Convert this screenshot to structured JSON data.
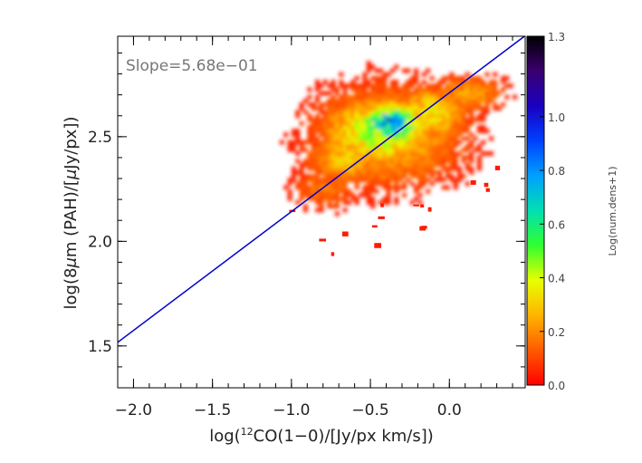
{
  "chart_data": {
    "type": "heatmap",
    "xlabel_pre": "log(",
    "xlabel_sup": "12",
    "xlabel_post": "CO(1−0)/[Jy/px km/s])",
    "ylabel_pre": "log(8",
    "ylabel_mu": "μ",
    "ylabel_mid": "m (PAH)/[",
    "ylabel_mu2": "μ",
    "ylabel_post": "Jy/px])",
    "xlim": [
      -2.1,
      0.48
    ],
    "ylim": [
      1.3,
      2.98
    ],
    "x_ticks": [
      -2.0,
      -1.5,
      -1.0,
      -0.5,
      0.0
    ],
    "x_tick_labels": [
      "−2.0",
      "−1.5",
      "−1.0",
      "−0.5",
      "0.0"
    ],
    "y_ticks": [
      1.5,
      2.0,
      2.5
    ],
    "y_tick_labels": [
      "1.5",
      "2.0",
      "2.5"
    ],
    "annotation": "Slope=5.68e−01",
    "fit_line": {
      "slope": 0.568,
      "intercept": 2.71,
      "color": "#0000cc"
    },
    "colorbar": {
      "label": "Log(num.dens+1)",
      "range": [
        0.0,
        1.3
      ],
      "ticks": [
        0.0,
        0.2,
        0.4,
        0.6,
        0.8,
        1.0,
        1.3
      ],
      "tick_labels": [
        "0.0",
        "0.2",
        "0.4",
        "0.6",
        "0.8",
        "1.0",
        "1.3"
      ],
      "colors": [
        "#ff0000",
        "#ff5a00",
        "#ffb400",
        "#e8ff00",
        "#30ff30",
        "#00e0b0",
        "#00a0ff",
        "#0040ff",
        "#1a00c0",
        "#3a0070",
        "#000000"
      ]
    },
    "density_blobs": [
      {
        "x": -0.4,
        "y": 2.5,
        "sx": 0.55,
        "sy": 0.28,
        "v": 0.25
      },
      {
        "x": -0.45,
        "y": 2.52,
        "sx": 0.4,
        "sy": 0.18,
        "v": 0.4
      },
      {
        "x": -0.38,
        "y": 2.55,
        "sx": 0.25,
        "sy": 0.12,
        "v": 0.6
      },
      {
        "x": -0.4,
        "y": 2.57,
        "sx": 0.12,
        "sy": 0.06,
        "v": 0.8
      },
      {
        "x": -0.15,
        "y": 2.6,
        "sx": 0.3,
        "sy": 0.15,
        "v": 0.3
      },
      {
        "x": 0.1,
        "y": 2.7,
        "sx": 0.28,
        "sy": 0.1,
        "v": 0.2
      },
      {
        "x": -0.65,
        "y": 2.4,
        "sx": 0.3,
        "sy": 0.15,
        "v": 0.25
      },
      {
        "x": -0.8,
        "y": 2.25,
        "sx": 0.25,
        "sy": 0.12,
        "v": 0.15
      }
    ]
  }
}
